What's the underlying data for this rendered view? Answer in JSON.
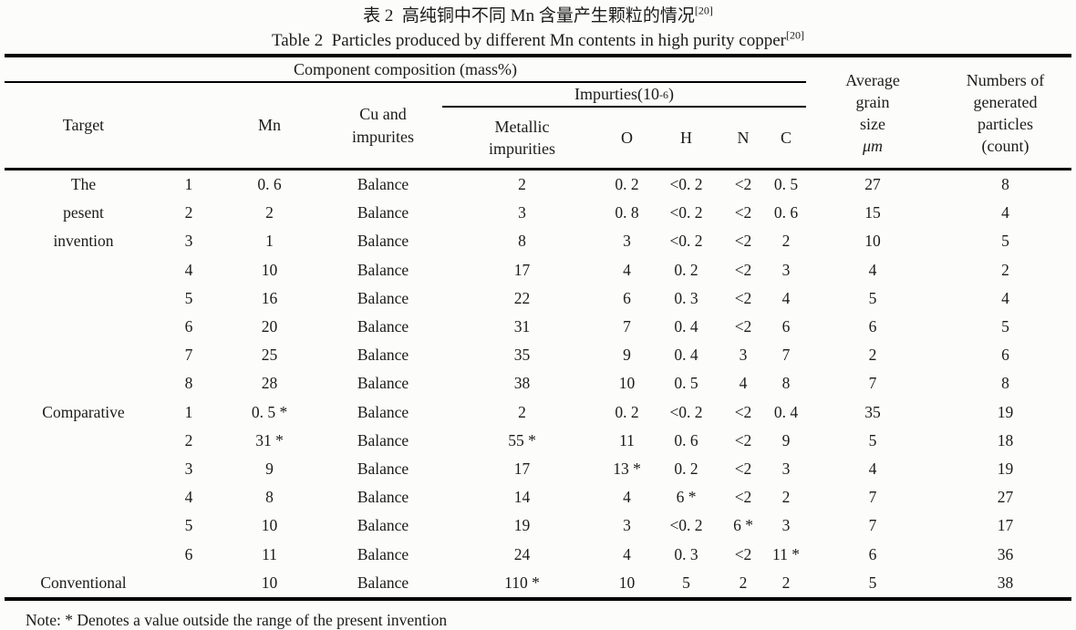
{
  "caption": {
    "zh": "表 2  高纯铜中不同 Mn 含量产生颗粒的情况",
    "zh_ref": "[20]",
    "en": "Table 2  Particles produced by different Mn contents in high purity copper",
    "en_ref": "[20]"
  },
  "header": {
    "component_group": "Component composition (mass%)",
    "impurities_prefix": "Impurties(10",
    "impurities_sup": "-6",
    "impurities_suffix": ")",
    "target": "Target",
    "mn": "Mn",
    "cu_line1": "Cu and",
    "cu_line2": "impurites",
    "metallic_line1": "Metallic",
    "metallic_line2": "impurities",
    "o": "O",
    "h": "H",
    "n": "N",
    "c": "C",
    "avg_lines": [
      "Average",
      "grain",
      "size",
      "μm"
    ],
    "num_lines": [
      "Numbers of",
      "generated",
      "particles",
      "(count)"
    ]
  },
  "table": {
    "rows": [
      {
        "target": "The",
        "no": "1",
        "mn": "0. 6",
        "cu": "Balance",
        "metallic": "2",
        "o": "0. 2",
        "h": "<0. 2",
        "n": "<2",
        "c": "0. 5",
        "grain": "27",
        "count": "8"
      },
      {
        "target": "pesent",
        "no": "2",
        "mn": "2",
        "cu": "Balance",
        "metallic": "3",
        "o": "0. 8",
        "h": "<0. 2",
        "n": "<2",
        "c": "0. 6",
        "grain": "15",
        "count": "4"
      },
      {
        "target": "invention",
        "no": "3",
        "mn": "1",
        "cu": "Balance",
        "metallic": "8",
        "o": "3",
        "h": "<0. 2",
        "n": "<2",
        "c": "2",
        "grain": "10",
        "count": "5"
      },
      {
        "target": "",
        "no": "4",
        "mn": "10",
        "cu": "Balance",
        "metallic": "17",
        "o": "4",
        "h": "0. 2",
        "n": "<2",
        "c": "3",
        "grain": "4",
        "count": "2"
      },
      {
        "target": "",
        "no": "5",
        "mn": "16",
        "cu": "Balance",
        "metallic": "22",
        "o": "6",
        "h": "0. 3",
        "n": "<2",
        "c": "4",
        "grain": "5",
        "count": "4"
      },
      {
        "target": "",
        "no": "6",
        "mn": "20",
        "cu": "Balance",
        "metallic": "31",
        "o": "7",
        "h": "0. 4",
        "n": "<2",
        "c": "6",
        "grain": "6",
        "count": "5"
      },
      {
        "target": "",
        "no": "7",
        "mn": "25",
        "cu": "Balance",
        "metallic": "35",
        "o": "9",
        "h": "0. 4",
        "n": "3",
        "c": "7",
        "grain": "2",
        "count": "6"
      },
      {
        "target": "",
        "no": "8",
        "mn": "28",
        "cu": "Balance",
        "metallic": "38",
        "o": "10",
        "h": "0. 5",
        "n": "4",
        "c": "8",
        "grain": "7",
        "count": "8"
      },
      {
        "target": "Comparative",
        "no": "1",
        "mn": "0. 5 *",
        "cu": "Balance",
        "metallic": "2",
        "o": "0. 2",
        "h": "<0. 2",
        "n": "<2",
        "c": "0. 4",
        "grain": "35",
        "count": "19"
      },
      {
        "target": "",
        "no": "2",
        "mn": "31 *",
        "cu": "Balance",
        "metallic": "55 *",
        "o": "11",
        "h": "0. 6",
        "n": "<2",
        "c": "9",
        "grain": "5",
        "count": "18"
      },
      {
        "target": "",
        "no": "3",
        "mn": "9",
        "cu": "Balance",
        "metallic": "17",
        "o": "13 *",
        "h": "0. 2",
        "n": "<2",
        "c": "3",
        "grain": "4",
        "count": "19"
      },
      {
        "target": "",
        "no": "4",
        "mn": "8",
        "cu": "Balance",
        "metallic": "14",
        "o": "4",
        "h": "6 *",
        "n": "<2",
        "c": "2",
        "grain": "7",
        "count": "27"
      },
      {
        "target": "",
        "no": "5",
        "mn": "10",
        "cu": "Balance",
        "metallic": "19",
        "o": "3",
        "h": "<0. 2",
        "n": "6 *",
        "c": "3",
        "grain": "7",
        "count": "17"
      },
      {
        "target": "",
        "no": "6",
        "mn": "11",
        "cu": "Balance",
        "metallic": "24",
        "o": "4",
        "h": "0. 3",
        "n": "<2",
        "c": "11 *",
        "grain": "6",
        "count": "36"
      },
      {
        "target": "Conventional",
        "no": "",
        "mn": "10",
        "cu": "Balance",
        "metallic": "110 *",
        "o": "10",
        "h": "5",
        "n": "2",
        "c": "2",
        "grain": "5",
        "count": "38"
      }
    ]
  },
  "note": "Note: * Denotes a value outside the range of the present invention"
}
